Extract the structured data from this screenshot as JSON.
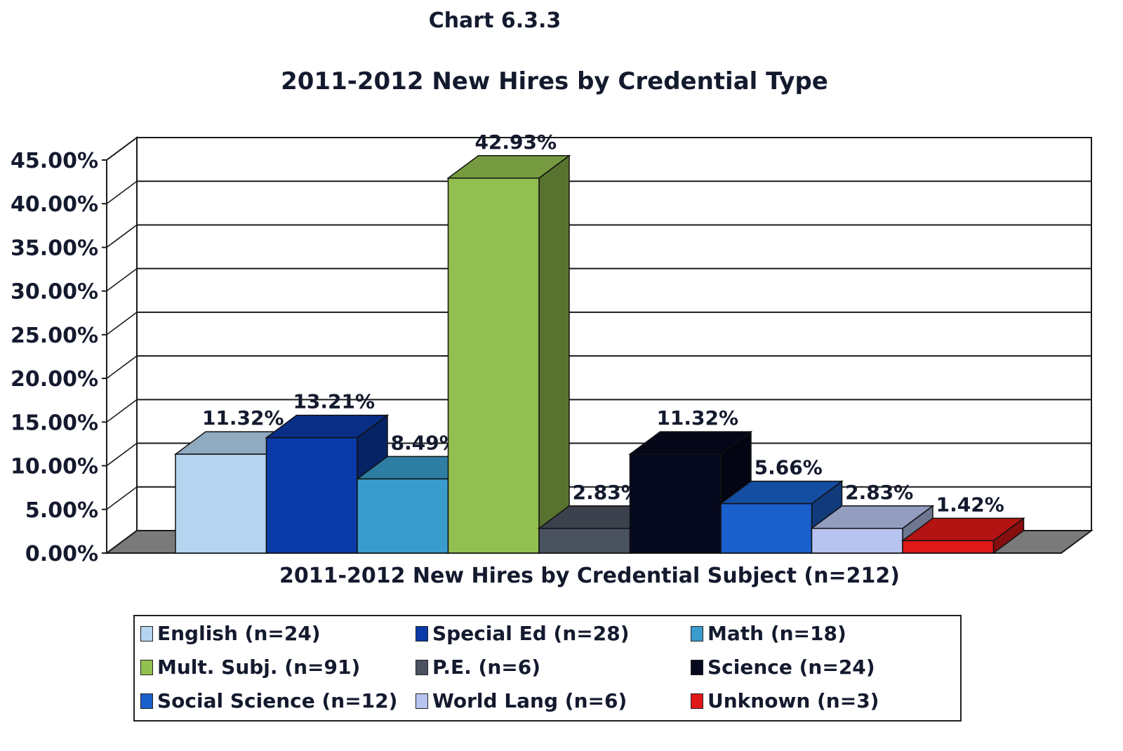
{
  "chart_data": {
    "type": "bar",
    "id_label": "Chart 6.3.3",
    "title": "2011-2012 New Hires by Credential Type",
    "xlabel": "2011-2012 New Hires by Credential Subject (n=212)",
    "ylabel": "",
    "ylim": [
      0,
      45
    ],
    "yticks": [
      "0.00%",
      "5.00%",
      "10.00%",
      "15.00%",
      "20.00%",
      "25.00%",
      "30.00%",
      "35.00%",
      "40.00%",
      "45.00%"
    ],
    "grid": true,
    "legend_position": "bottom",
    "series": [
      {
        "name": "English (n=24)",
        "value": 11.32,
        "label": "11.32%",
        "color": "#b4d4f0"
      },
      {
        "name": "Special Ed (n=28)",
        "value": 13.21,
        "label": "13.21%",
        "color": "#0a3aa8"
      },
      {
        "name": "Math (n=18)",
        "value": 8.49,
        "label": "8.49%",
        "color": "#3a9ccc"
      },
      {
        "name": "Mult. Subj. (n=91)",
        "value": 42.93,
        "label": "42.93%",
        "color": "#92c050"
      },
      {
        "name": "P.E. (n=6)",
        "value": 2.83,
        "label": "2.83%",
        "color": "#4a5260"
      },
      {
        "name": "Science (n=24)",
        "value": 11.32,
        "label": "11.32%",
        "color": "#06091e"
      },
      {
        "name": "Social Science (n=12)",
        "value": 5.66,
        "label": "5.66%",
        "color": "#1a60cc"
      },
      {
        "name": "World Lang (n=6)",
        "value": 2.83,
        "label": "2.83%",
        "color": "#b8c4f0"
      },
      {
        "name": "Unknown (n=3)",
        "value": 1.42,
        "label": "1.42%",
        "color": "#e01818"
      }
    ]
  }
}
